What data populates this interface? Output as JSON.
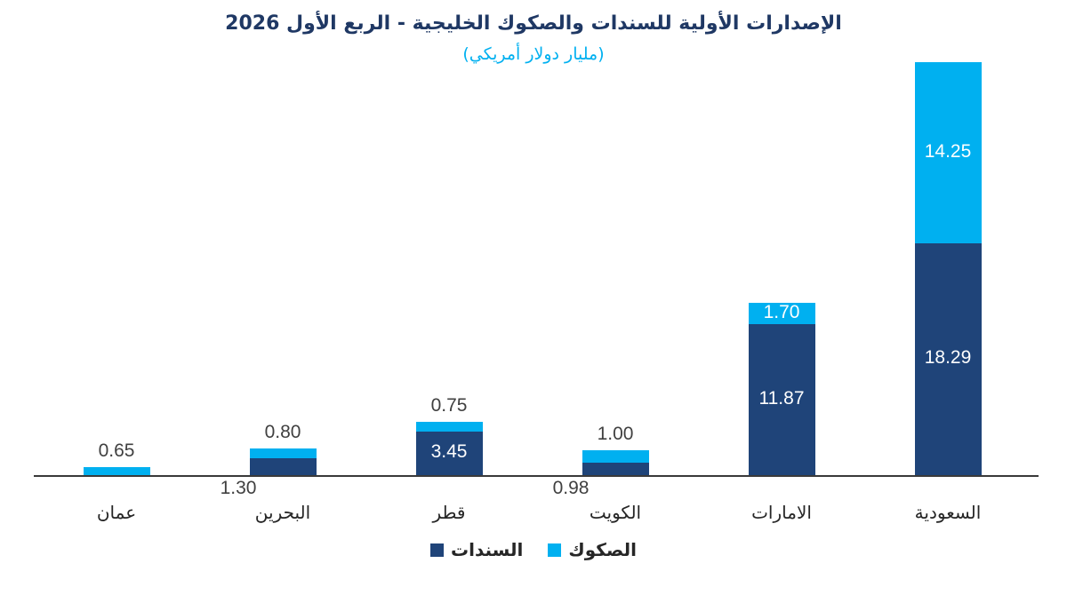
{
  "chart_data": {
    "type": "bar",
    "stacked": true,
    "title": "الإصدارات الأولية للسندات والصكوك الخليجية - الربع الأول 2026",
    "subtitle": "(مليار دولار أمريكي)",
    "categories": [
      "عمان",
      "البحرين",
      "قطر",
      "الكويت",
      "الامارات",
      "السعودية"
    ],
    "series": [
      {
        "name": "السندات",
        "color": "#1f4479",
        "values": [
          0.0,
          1.3,
          3.45,
          0.98,
          11.87,
          18.29
        ]
      },
      {
        "name": "الصكوك",
        "color": "#00b0f0",
        "values": [
          0.65,
          0.8,
          0.75,
          1.0,
          1.7,
          14.25
        ]
      }
    ],
    "xlabel": "",
    "ylabel": "",
    "ylim": [
      0,
      32.54
    ],
    "grid": false,
    "legend_position": "bottom"
  },
  "legend": {
    "sukuk": "الصكوك",
    "bonds": "السندات"
  }
}
